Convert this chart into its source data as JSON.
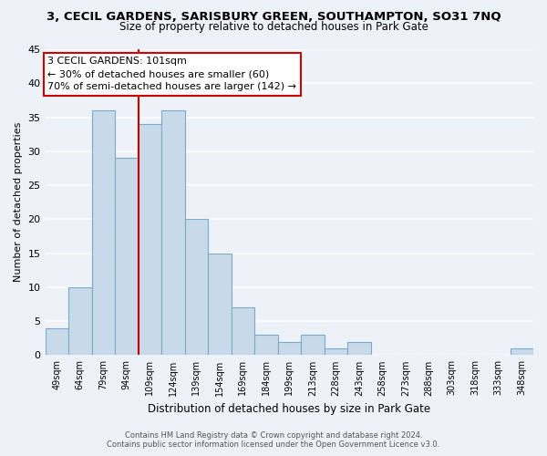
{
  "title": "3, CECIL GARDENS, SARISBURY GREEN, SOUTHAMPTON, SO31 7NQ",
  "subtitle": "Size of property relative to detached houses in Park Gate",
  "xlabel": "Distribution of detached houses by size in Park Gate",
  "ylabel": "Number of detached properties",
  "bar_labels": [
    "49sqm",
    "64sqm",
    "79sqm",
    "94sqm",
    "109sqm",
    "124sqm",
    "139sqm",
    "154sqm",
    "169sqm",
    "184sqm",
    "199sqm",
    "213sqm",
    "228sqm",
    "243sqm",
    "258sqm",
    "273sqm",
    "288sqm",
    "303sqm",
    "318sqm",
    "333sqm",
    "348sqm"
  ],
  "bar_values": [
    4,
    10,
    36,
    29,
    34,
    36,
    20,
    15,
    7,
    3,
    2,
    3,
    1,
    2,
    0,
    0,
    0,
    0,
    0,
    0,
    1
  ],
  "bar_color": "#c8daea",
  "bar_edge_color": "#7aaac8",
  "vline_x_index": 3.5,
  "vline_color": "#cc0000",
  "ylim": [
    0,
    45
  ],
  "yticks": [
    0,
    5,
    10,
    15,
    20,
    25,
    30,
    35,
    40,
    45
  ],
  "annotation_title": "3 CECIL GARDENS: 101sqm",
  "annotation_line1": "← 30% of detached houses are smaller (60)",
  "annotation_line2": "70% of semi-detached houses are larger (142) →",
  "annotation_box_color": "#ffffff",
  "annotation_box_edge": "#cc0000",
  "footer1": "Contains HM Land Registry data © Crown copyright and database right 2024.",
  "footer2": "Contains public sector information licensed under the Open Government Licence v3.0.",
  "background_color": "#edf2f8",
  "grid_color": "#ffffff"
}
